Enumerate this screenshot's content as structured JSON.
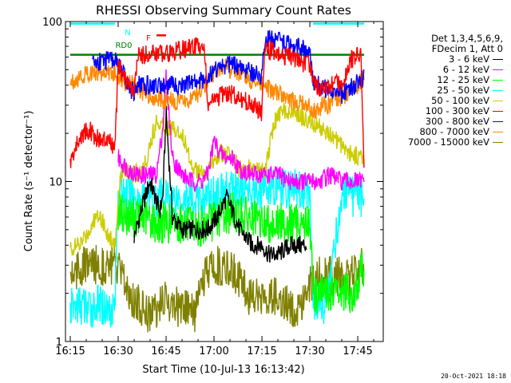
{
  "chart_data": {
    "type": "line",
    "title": "RHESSI Observing Summary Count Rates",
    "xlabel": "Start Time (10-Jul-13 16:13:42)",
    "ylabel": "Count Rate (s⁻¹ detector⁻¹)",
    "yscale": "log",
    "ylim": [
      1,
      100
    ],
    "xlim_minutes": [
      16.225,
      17.883
    ],
    "x_ticks": [
      "16:15",
      "16:30",
      "16:45",
      "17:00",
      "17:15",
      "17:30",
      "17:45"
    ],
    "y_ticks": [
      "1",
      "10",
      "100"
    ],
    "grid": false,
    "legend_position": "right",
    "legend_header": [
      "Det 1,3,4,5,6,9,",
      "FDecim 1, Att 0"
    ],
    "series": [
      {
        "name": "3 - 6 keV",
        "color": "#000000",
        "t": [
          "16:35",
          "16:38",
          "16:40",
          "16:43",
          "16:44",
          "16:45",
          "16:47",
          "16:50",
          "16:53",
          "16:56",
          "16:58",
          "17:01",
          "17:04",
          "17:08",
          "17:12",
          "17:15",
          "17:17",
          "17:20",
          "17:24",
          "17:27",
          "17:29"
        ],
        "values": [
          4.5,
          7.5,
          10,
          6.5,
          8,
          27,
          6,
          5,
          5,
          5,
          5,
          6,
          8,
          5,
          4,
          4,
          3.5,
          3.5,
          4,
          4,
          4
        ]
      },
      {
        "name": "6 - 12 keV",
        "color": "#ff00ff",
        "t": [
          "16:30",
          "16:33",
          "16:36",
          "16:39",
          "16:42",
          "16:44",
          "16:45",
          "16:47",
          "16:50",
          "16:53",
          "16:56",
          "16:58",
          "17:00",
          "17:02",
          "17:04",
          "17:06",
          "17:08",
          "17:12",
          "17:16",
          "17:20",
          "17:24",
          "17:28",
          "17:30",
          "17:33",
          "17:36",
          "17:40",
          "17:43",
          "17:46",
          "17:47"
        ],
        "values": [
          14,
          12,
          11,
          11,
          11,
          22,
          45,
          14,
          11,
          10,
          10,
          11,
          18,
          15,
          14,
          14,
          12,
          11,
          11,
          11,
          10,
          10,
          10,
          10,
          11,
          10,
          10,
          10,
          10
        ]
      },
      {
        "name": "12 - 25 keV",
        "color": "#00ff00",
        "t": [
          "16:30",
          "16:34",
          "16:38",
          "16:42",
          "16:46",
          "16:50",
          "16:54",
          "16:58",
          "17:02",
          "17:06",
          "17:10",
          "17:14",
          "17:18",
          "17:22",
          "17:26",
          "17:30",
          "17:31",
          "17:35",
          "17:40",
          "17:44",
          "17:47"
        ],
        "values": [
          6.5,
          6,
          6,
          5.5,
          5.5,
          5.5,
          5,
          5.5,
          6,
          6.5,
          6,
          5.5,
          5.5,
          5.5,
          5.5,
          5.5,
          2,
          2,
          2,
          2,
          3
        ]
      },
      {
        "name": "25 - 50 keV",
        "color": "#00ffff",
        "t": [
          "16:15",
          "16:18",
          "16:21",
          "16:24",
          "16:27",
          "16:29",
          "16:30",
          "16:34",
          "16:38",
          "16:42",
          "16:46",
          "16:50",
          "16:54",
          "16:58",
          "17:02",
          "17:06",
          "17:10",
          "17:14",
          "17:18",
          "17:22",
          "17:26",
          "17:30",
          "17:31",
          "17:35",
          "17:40",
          "17:44",
          "17:47"
        ],
        "values": [
          1.6,
          1.7,
          1.6,
          1.7,
          1.6,
          1.7,
          9,
          8,
          8,
          8,
          8,
          8,
          7.5,
          8,
          8.5,
          9,
          9,
          9,
          9,
          9,
          9,
          9,
          1.8,
          1.7,
          8,
          8,
          8
        ]
      },
      {
        "name": "50 - 100 keV",
        "color": "#cccc00",
        "t": [
          "16:15",
          "16:18",
          "16:21",
          "16:24",
          "16:27",
          "16:29",
          "16:31",
          "16:33",
          "16:35",
          "16:38",
          "16:42",
          "16:46",
          "16:50",
          "16:53",
          "16:56",
          "16:58",
          "17:00",
          "17:02",
          "17:04",
          "17:06",
          "17:08",
          "17:12",
          "17:16",
          "17:19",
          "17:22",
          "17:25",
          "17:28",
          "17:31",
          "17:34",
          "17:37",
          "17:40",
          "17:43",
          "17:46",
          "17:47"
        ],
        "values": [
          3.8,
          4,
          5,
          6.5,
          4.5,
          4,
          12,
          12,
          11,
          12,
          24,
          22,
          20,
          13,
          11,
          11,
          14,
          15,
          15,
          14,
          12,
          12,
          12,
          24,
          28,
          28,
          25,
          23,
          21,
          19,
          17,
          15,
          14,
          14
        ]
      },
      {
        "name": "100 - 300 keV",
        "color": "#ff0000",
        "t": [
          "16:15",
          "16:17",
          "16:19",
          "16:21",
          "16:23",
          "16:25",
          "16:27",
          "16:29",
          "16:30",
          "16:32",
          "16:35",
          "16:36",
          "16:38",
          "16:40",
          "16:42",
          "16:44",
          "16:46",
          "16:48",
          "16:50",
          "16:52",
          "16:55",
          "16:57",
          "16:58",
          "17:00",
          "17:02",
          "17:04",
          "17:06",
          "17:08",
          "17:10",
          "17:12",
          "17:14",
          "17:15",
          "17:16",
          "17:20",
          "17:24",
          "17:28",
          "17:30",
          "17:31",
          "17:34",
          "17:37",
          "17:40",
          "17:43",
          "17:46",
          "17:47"
        ],
        "values": [
          13,
          17,
          20,
          21,
          19,
          18,
          18,
          16,
          52,
          45,
          35,
          60,
          62,
          63,
          63,
          64,
          64,
          65,
          67,
          68,
          70,
          72,
          30,
          32,
          34,
          36,
          35,
          33,
          32,
          30,
          28,
          27,
          68,
          62,
          60,
          55,
          54,
          41,
          38,
          40,
          42,
          58,
          62,
          10
        ]
      },
      {
        "name": "300 - 800 keV",
        "color": "#0000ff",
        "t": [
          "16:22",
          "16:25",
          "16:28",
          "16:30",
          "16:33",
          "16:35",
          "16:36",
          "16:40",
          "16:45",
          "16:50",
          "16:55",
          "16:58",
          "17:00",
          "17:05",
          "17:10",
          "17:15",
          "17:16",
          "17:20",
          "17:25",
          "17:30",
          "17:31",
          "17:35",
          "17:40",
          "17:44",
          "17:47"
        ],
        "values": [
          55,
          57,
          57,
          56,
          40,
          36,
          40,
          40,
          40,
          40,
          42,
          45,
          50,
          55,
          50,
          45,
          80,
          75,
          70,
          65,
          42,
          38,
          35,
          40,
          44
        ]
      },
      {
        "name": "800 - 7000 keV",
        "color": "#ff8800",
        "t": [
          "16:15",
          "16:18",
          "16:21",
          "16:24",
          "16:27",
          "16:30",
          "16:32",
          "16:35",
          "16:38",
          "16:41",
          "16:44",
          "16:47",
          "16:50",
          "16:53",
          "16:56",
          "16:58",
          "17:00",
          "17:03",
          "17:06",
          "17:09",
          "17:12",
          "17:15",
          "17:17",
          "17:20",
          "17:24",
          "17:28",
          "17:30",
          "17:32",
          "17:35",
          "17:38",
          "17:41",
          "17:44",
          "17:47"
        ],
        "values": [
          42,
          45,
          48,
          48,
          48,
          46,
          42,
          40,
          36,
          34,
          32,
          32,
          31,
          33,
          37,
          43,
          48,
          52,
          50,
          46,
          42,
          40,
          38,
          35,
          32,
          30,
          29,
          28,
          30,
          32,
          35,
          38,
          45
        ]
      },
      {
        "name": "7000 - 15000 keV",
        "color": "#808000",
        "t": [
          "16:15",
          "16:20",
          "16:25",
          "16:29",
          "16:31",
          "16:35",
          "16:40",
          "16:45",
          "16:50",
          "16:54",
          "16:58",
          "17:02",
          "17:06",
          "17:10",
          "17:14",
          "17:18",
          "17:22",
          "17:26",
          "17:30",
          "17:32",
          "17:36",
          "17:40",
          "17:44",
          "17:47"
        ],
        "values": [
          2.7,
          3,
          3,
          3,
          2.5,
          1.8,
          1.5,
          1.8,
          1.6,
          1.5,
          2.8,
          3,
          2.8,
          2,
          1.9,
          2,
          1.7,
          1.6,
          2.3,
          2.5,
          2.6,
          2.5,
          2.6,
          3
        ]
      }
    ],
    "annotations": [
      {
        "label": "N",
        "color": "#00ffff",
        "segments": [
          [
            "16:15",
            "16:29"
          ],
          [
            "17:31",
            "17:47"
          ]
        ],
        "level": 97
      },
      {
        "label": "RD0",
        "color": "#008000",
        "segments": [
          [
            "16:15",
            "17:47"
          ]
        ],
        "level": 62
      },
      {
        "label": "F",
        "color": "#ff0000",
        "segments": [
          [
            "16:42",
            "16:45"
          ]
        ],
        "level": 82
      }
    ],
    "timestamp": "20-Oct-2021 18:18"
  }
}
